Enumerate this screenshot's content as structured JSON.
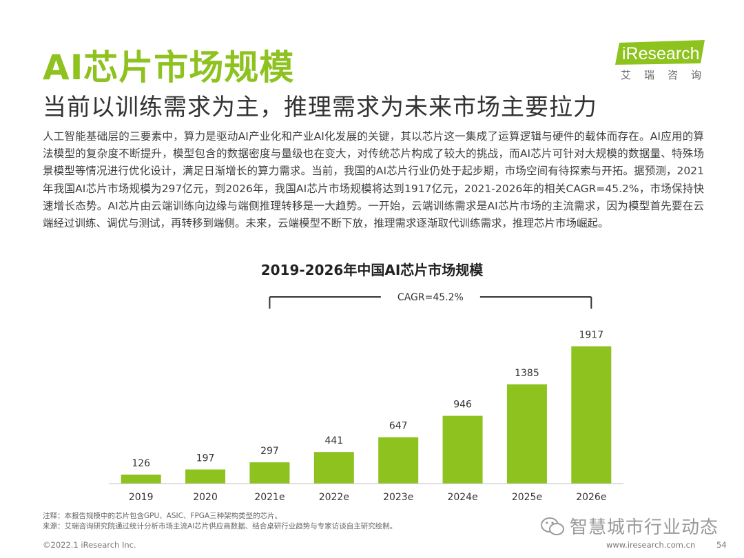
{
  "title": "AI芯片市场规模",
  "subtitle": "当前以训练需求为主，推理需求为未来市场主要拉力",
  "logo": {
    "brand": "iResearch",
    "sub": "艾瑞咨询",
    "color": "#8dc21f"
  },
  "body_text": "人工智能基础层的三要素中，算力是驱动AI产业化和产业AI化发展的关键，其以芯片这一集成了运算逻辑与硬件的载体而存在。AI应用的算法模型的复杂度不断提升，模型包含的数据密度与量级也在变大，对传统芯片构成了较大的挑战，而AI芯片可针对大规模的数据量、特殊场景模型等情况进行优化设计，满足日渐增长的算力需求。当前，我国的AI芯片行业仍处于起步期，市场空间有待探索与开拓。据预测，2021年我国AI芯片市场规模为297亿元，到2026年，我国AI芯片市场规模将达到1917亿元，2021-2026年的相关CAGR=45.2%，市场保持快速增长态势。AI芯片由云端训练向边缘与端侧推理转移是一大趋势。一开始，云端训练需求是AI芯片市场的主流需求，因为模型首先要在云端经过训练、调优与测试，再转移到端侧。未来，云端模型不断下放，推理需求逐渐取代训练需求，推理芯片市场崛起。",
  "chart_data": {
    "type": "bar",
    "title": "2019-2026年中国AI芯片市场规模",
    "categories": [
      "2019",
      "2020",
      "2021e",
      "2022e",
      "2023e",
      "2024e",
      "2025e",
      "2026e"
    ],
    "values": [
      126,
      197,
      297,
      441,
      647,
      946,
      1385,
      1917
    ],
    "bar_color": "#8dc21f",
    "ylim": [
      0,
      2000
    ],
    "grid": false,
    "annotation": {
      "text": "CAGR=45.2%",
      "from": "2021e",
      "to": "2026e"
    }
  },
  "notes": {
    "note": "注释：本报告规模中的芯片包含GPU、ASIC、FPGA三种架构类型的芯片。",
    "source": "来源：艾瑞咨询研究院通过统计分析市场主流AI芯片供应商数据、结合桌研行业趋势与专家访谈自主研究绘制。"
  },
  "watermark": {
    "text": "智慧城市行业动态",
    "icon": "wechat-icon"
  },
  "footer": {
    "copyright": "©2022.1 iResearch Inc.",
    "url": "www.iresearch.com.cn",
    "page": "54"
  }
}
